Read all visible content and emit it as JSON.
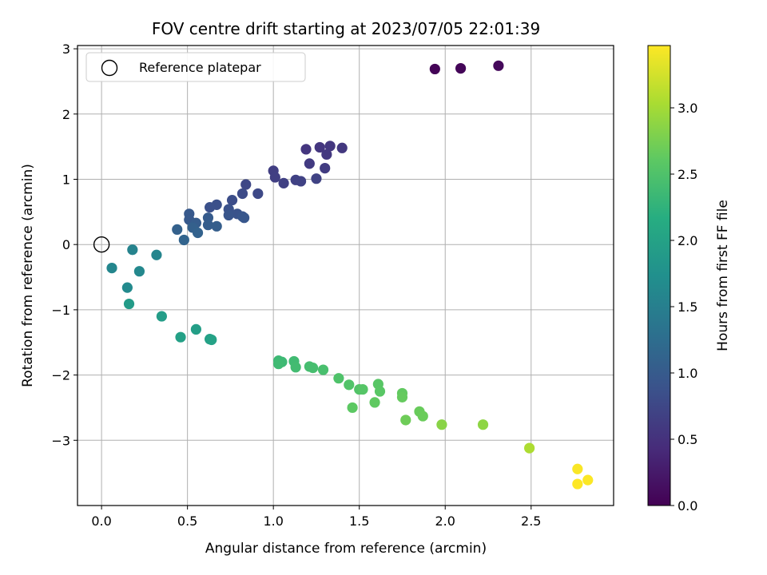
{
  "chart_data": {
    "type": "scatter",
    "title": "FOV centre drift starting at 2023/07/05 22:01:39",
    "xlabel": "Angular distance from reference (arcmin)",
    "ylabel": "Rotation from reference (arcmin)",
    "xlim": [
      -0.14,
      2.98
    ],
    "ylim": [
      -4.0,
      3.05
    ],
    "xticks": [
      0.0,
      0.5,
      1.0,
      1.5,
      2.0,
      2.5
    ],
    "xtick_labels": [
      "0.0",
      "0.5",
      "1.0",
      "1.5",
      "2.0",
      "2.5"
    ],
    "yticks": [
      3,
      2,
      1,
      0,
      -1,
      -2,
      -3
    ],
    "ytick_labels": [
      "3",
      "2",
      "1",
      "0",
      "−1",
      "−2",
      "−3"
    ],
    "grid": true,
    "colormap": "viridis",
    "colorbar": {
      "label": "Hours from first FF file",
      "range": [
        0.0,
        3.47
      ],
      "ticks": [
        0.0,
        0.5,
        1.0,
        1.5,
        2.0,
        2.5,
        3.0
      ],
      "tick_labels": [
        "0.0",
        "0.5",
        "1.0",
        "1.5",
        "2.0",
        "2.5",
        "3.0"
      ]
    },
    "legend": {
      "placement": "top-left",
      "entries": [
        "Reference platepar"
      ]
    },
    "reference_point": {
      "x": 0.0,
      "y": 0.0
    },
    "points": [
      {
        "x": 1.94,
        "y": 2.69,
        "c": 0.03
      },
      {
        "x": 2.09,
        "y": 2.7,
        "c": 0.05
      },
      {
        "x": 2.31,
        "y": 2.74,
        "c": 0.08
      },
      {
        "x": 1.19,
        "y": 1.46,
        "c": 0.55
      },
      {
        "x": 1.27,
        "y": 1.49,
        "c": 0.55
      },
      {
        "x": 1.33,
        "y": 1.51,
        "c": 0.56
      },
      {
        "x": 1.4,
        "y": 1.48,
        "c": 0.57
      },
      {
        "x": 1.31,
        "y": 1.38,
        "c": 0.58
      },
      {
        "x": 1.21,
        "y": 1.24,
        "c": 0.6
      },
      {
        "x": 1.3,
        "y": 1.17,
        "c": 0.62
      },
      {
        "x": 1.0,
        "y": 1.13,
        "c": 0.65
      },
      {
        "x": 1.01,
        "y": 1.03,
        "c": 0.66
      },
      {
        "x": 1.06,
        "y": 0.94,
        "c": 0.67
      },
      {
        "x": 1.13,
        "y": 0.99,
        "c": 0.68
      },
      {
        "x": 1.16,
        "y": 0.97,
        "c": 0.69
      },
      {
        "x": 1.25,
        "y": 1.01,
        "c": 0.7
      },
      {
        "x": 0.84,
        "y": 0.92,
        "c": 0.75
      },
      {
        "x": 0.91,
        "y": 0.78,
        "c": 0.77
      },
      {
        "x": 0.82,
        "y": 0.78,
        "c": 0.8
      },
      {
        "x": 0.76,
        "y": 0.68,
        "c": 0.82
      },
      {
        "x": 0.67,
        "y": 0.61,
        "c": 0.85
      },
      {
        "x": 0.63,
        "y": 0.57,
        "c": 0.87
      },
      {
        "x": 0.74,
        "y": 0.54,
        "c": 0.88
      },
      {
        "x": 0.79,
        "y": 0.47,
        "c": 0.9
      },
      {
        "x": 0.74,
        "y": 0.45,
        "c": 0.92
      },
      {
        "x": 0.82,
        "y": 0.43,
        "c": 0.93
      },
      {
        "x": 0.83,
        "y": 0.41,
        "c": 0.95
      },
      {
        "x": 0.51,
        "y": 0.47,
        "c": 0.97
      },
      {
        "x": 0.51,
        "y": 0.38,
        "c": 0.98
      },
      {
        "x": 0.62,
        "y": 0.41,
        "c": 1.0
      },
      {
        "x": 0.55,
        "y": 0.33,
        "c": 1.02
      },
      {
        "x": 0.62,
        "y": 0.3,
        "c": 1.03
      },
      {
        "x": 0.67,
        "y": 0.28,
        "c": 1.05
      },
      {
        "x": 0.53,
        "y": 0.26,
        "c": 1.07
      },
      {
        "x": 0.44,
        "y": 0.23,
        "c": 1.08
      },
      {
        "x": 0.56,
        "y": 0.18,
        "c": 1.1
      },
      {
        "x": 0.48,
        "y": 0.07,
        "c": 1.12
      },
      {
        "x": 0.18,
        "y": -0.08,
        "c": 1.55
      },
      {
        "x": 0.32,
        "y": -0.16,
        "c": 1.58
      },
      {
        "x": 0.06,
        "y": -0.36,
        "c": 1.6
      },
      {
        "x": 0.22,
        "y": -0.41,
        "c": 1.62
      },
      {
        "x": 0.15,
        "y": -0.66,
        "c": 1.65
      },
      {
        "x": 0.16,
        "y": -0.91,
        "c": 1.9
      },
      {
        "x": 0.35,
        "y": -1.1,
        "c": 1.93
      },
      {
        "x": 0.55,
        "y": -1.3,
        "c": 1.95
      },
      {
        "x": 0.46,
        "y": -1.42,
        "c": 1.97
      },
      {
        "x": 0.63,
        "y": -1.45,
        "c": 1.98
      },
      {
        "x": 0.64,
        "y": -1.46,
        "c": 2.0
      },
      {
        "x": 1.03,
        "y": -1.78,
        "c": 2.35
      },
      {
        "x": 1.05,
        "y": -1.8,
        "c": 2.36
      },
      {
        "x": 1.03,
        "y": -1.83,
        "c": 2.37
      },
      {
        "x": 1.12,
        "y": -1.79,
        "c": 2.38
      },
      {
        "x": 1.13,
        "y": -1.88,
        "c": 2.4
      },
      {
        "x": 1.21,
        "y": -1.87,
        "c": 2.42
      },
      {
        "x": 1.23,
        "y": -1.89,
        "c": 2.43
      },
      {
        "x": 1.29,
        "y": -1.92,
        "c": 2.45
      },
      {
        "x": 1.38,
        "y": -2.05,
        "c": 2.5
      },
      {
        "x": 1.44,
        "y": -2.15,
        "c": 2.52
      },
      {
        "x": 1.5,
        "y": -2.22,
        "c": 2.53
      },
      {
        "x": 1.52,
        "y": -2.22,
        "c": 2.55
      },
      {
        "x": 1.61,
        "y": -2.14,
        "c": 2.57
      },
      {
        "x": 1.62,
        "y": -2.25,
        "c": 2.58
      },
      {
        "x": 1.46,
        "y": -2.5,
        "c": 2.6
      },
      {
        "x": 1.59,
        "y": -2.42,
        "c": 2.62
      },
      {
        "x": 1.75,
        "y": -2.28,
        "c": 2.63
      },
      {
        "x": 1.75,
        "y": -2.34,
        "c": 2.65
      },
      {
        "x": 1.85,
        "y": -2.56,
        "c": 2.67
      },
      {
        "x": 1.87,
        "y": -2.63,
        "c": 2.68
      },
      {
        "x": 1.77,
        "y": -2.69,
        "c": 2.7
      },
      {
        "x": 1.98,
        "y": -2.76,
        "c": 2.85
      },
      {
        "x": 2.22,
        "y": -2.76,
        "c": 2.88
      },
      {
        "x": 2.49,
        "y": -3.12,
        "c": 3.05
      },
      {
        "x": 2.77,
        "y": -3.44,
        "c": 3.45
      },
      {
        "x": 2.83,
        "y": -3.61,
        "c": 3.46
      },
      {
        "x": 2.77,
        "y": -3.67,
        "c": 3.47
      }
    ]
  }
}
